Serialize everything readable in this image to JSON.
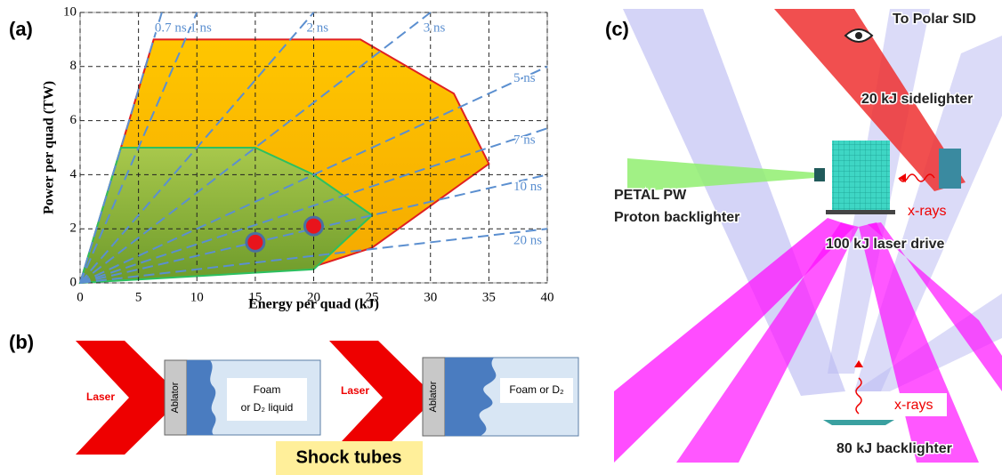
{
  "chart_data": {
    "type": "area",
    "panel_label": "(a)",
    "xlabel": "Energy per quad (kJ)",
    "ylabel": "Power per quad (TW)",
    "xlim": [
      0,
      40
    ],
    "ylim": [
      0,
      10
    ],
    "xticks": [
      0,
      5,
      10,
      15,
      20,
      25,
      30,
      35,
      40
    ],
    "yticks": [
      0,
      2,
      4,
      6,
      8,
      10
    ],
    "grid": true,
    "pulse_lines": {
      "color": "#5b8fd0",
      "durations": [
        0.7,
        1,
        2,
        3,
        5,
        7,
        10,
        20
      ],
      "labels": [
        "0.7 ns",
        "1 ns",
        "2 ns",
        "3 ns",
        "5 ns",
        "7 ns",
        "10 ns",
        "20 ns"
      ]
    },
    "regions": [
      {
        "color": "#ffc000",
        "edge": "#e02020",
        "x": [
          0,
          6.3,
          24,
          32,
          35,
          25,
          20,
          0
        ],
        "values": [
          0,
          9,
          9,
          7,
          4.4,
          1.3,
          0.6,
          0
        ]
      },
      {
        "color": "#93b83c",
        "edge": "#2cc060",
        "x": [
          0,
          3.5,
          15,
          20,
          25,
          20,
          0
        ],
        "values": [
          0,
          5,
          5,
          4,
          2.5,
          0.5,
          0
        ]
      }
    ],
    "points": {
      "color": "#e8141c",
      "x": [
        15,
        20
      ],
      "values": [
        1.5,
        2.1
      ]
    }
  },
  "panel_b": {
    "label": "(b)",
    "tubes": [
      {
        "laser": "Laser",
        "ablator": "Ablator",
        "fill_lines": [
          "Foam",
          "or D₂ liquid"
        ]
      },
      {
        "laser": "Laser",
        "ablator": "Ablator",
        "fill_lines": [
          "Foam or D₂"
        ]
      }
    ],
    "caption": "Shock tubes"
  },
  "panel_c": {
    "label": "(c)",
    "view": "To Polar SID",
    "sidelighter": "20 kJ sidelighter",
    "petal": [
      "PETAL PW",
      "Proton backlighter"
    ],
    "xrays_top": "x-rays",
    "drive": "100 kJ laser drive",
    "xrays_bottom": "x-rays",
    "backlighter": "80 kJ backlighter"
  }
}
